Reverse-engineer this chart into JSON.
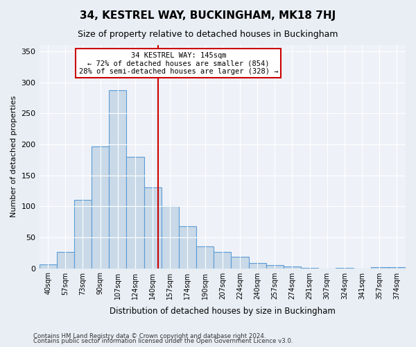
{
  "title": "34, KESTREL WAY, BUCKINGHAM, MK18 7HJ",
  "subtitle": "Size of property relative to detached houses in Buckingham",
  "xlabel": "Distribution of detached houses by size in Buckingham",
  "ylabel": "Number of detached properties",
  "bar_color": "#c9d9e8",
  "bar_edge_color": "#5b9bd5",
  "categories": [
    "40sqm",
    "57sqm",
    "73sqm",
    "90sqm",
    "107sqm",
    "124sqm",
    "140sqm",
    "157sqm",
    "174sqm",
    "190sqm",
    "207sqm",
    "224sqm",
    "240sqm",
    "257sqm",
    "274sqm",
    "291sqm",
    "307sqm",
    "324sqm",
    "341sqm",
    "357sqm",
    "374sqm"
  ],
  "values": [
    6,
    26,
    110,
    197,
    287,
    180,
    130,
    100,
    68,
    35,
    26,
    18,
    8,
    5,
    3,
    1,
    0,
    1,
    0,
    2,
    2
  ],
  "vline_pos": 6.3,
  "vline_color": "#cc0000",
  "annotation_line1": "34 KESTREL WAY: 145sqm",
  "annotation_line2": "← 72% of detached houses are smaller (854)",
  "annotation_line3": "28% of semi-detached houses are larger (328) →",
  "annotation_box_color": "#ffffff",
  "annotation_box_edge": "#cc0000",
  "ylim": [
    0,
    360
  ],
  "yticks": [
    0,
    50,
    100,
    150,
    200,
    250,
    300,
    350
  ],
  "footer1": "Contains HM Land Registry data © Crown copyright and database right 2024.",
  "footer2": "Contains public sector information licensed under the Open Government Licence v3.0.",
  "bg_color": "#e8eef4",
  "plot_bg_color": "#eef2f8"
}
